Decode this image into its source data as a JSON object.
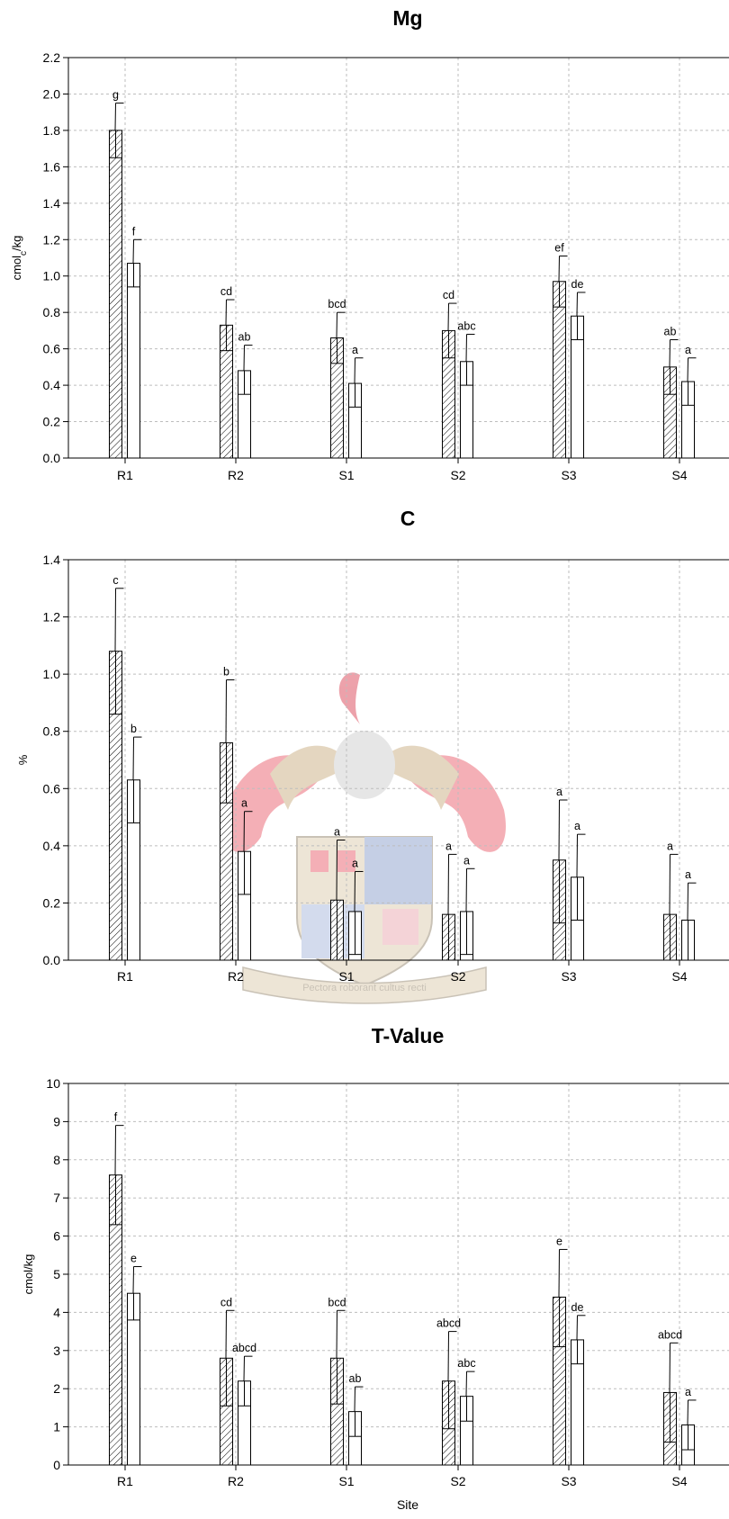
{
  "chart_data": [
    {
      "type": "bar",
      "title": "Mg",
      "ylabel": "cmol",
      "ylabel_sub": "c",
      "ylabel_suffix": "/kg",
      "xlabel": "",
      "categories": [
        "R1",
        "R2",
        "S1",
        "S2",
        "S3",
        "S4"
      ],
      "ylim": [
        0,
        2.2
      ],
      "yticks": [
        "0.0",
        "0.2",
        "0.4",
        "0.6",
        "0.8",
        "1.0",
        "1.2",
        "1.4",
        "1.6",
        "1.8",
        "2.0",
        "2.2"
      ],
      "grid": true,
      "series": [
        {
          "values": [
            1.8,
            0.73,
            0.66,
            0.7,
            0.97,
            0.5
          ],
          "err_upper": [
            1.95,
            0.87,
            0.8,
            0.85,
            1.11,
            0.65
          ],
          "err_lower": [
            1.65,
            0.59,
            0.52,
            0.55,
            0.83,
            0.35
          ],
          "labels": [
            "g",
            "cd",
            "bcd",
            "cd",
            "ef",
            "ab"
          ],
          "pattern": "hatched"
        },
        {
          "values": [
            1.07,
            0.48,
            0.41,
            0.53,
            0.78,
            0.42
          ],
          "err_upper": [
            1.2,
            0.62,
            0.55,
            0.68,
            0.91,
            0.55
          ],
          "err_lower": [
            0.94,
            0.35,
            0.28,
            0.4,
            0.65,
            0.29
          ],
          "labels": [
            "f",
            "ab",
            "a",
            "abc",
            "de",
            "a"
          ],
          "pattern": "open"
        }
      ]
    },
    {
      "type": "bar",
      "title": "C",
      "ylabel": "%",
      "xlabel": "",
      "categories": [
        "R1",
        "R2",
        "S1",
        "S2",
        "S3",
        "S4"
      ],
      "ylim": [
        0,
        1.4
      ],
      "yticks": [
        "0.0",
        "0.2",
        "0.4",
        "0.6",
        "0.8",
        "1.0",
        "1.2",
        "1.4"
      ],
      "grid": true,
      "series": [
        {
          "values": [
            1.08,
            0.76,
            0.21,
            0.16,
            0.35,
            0.16
          ],
          "err_upper": [
            1.3,
            0.98,
            0.42,
            0.37,
            0.56,
            0.37
          ],
          "err_lower": [
            0.86,
            0.55,
            0.0,
            0.0,
            0.13,
            0.0
          ],
          "labels": [
            "c",
            "b",
            "a",
            "a",
            "a",
            "a"
          ],
          "pattern": "hatched"
        },
        {
          "values": [
            0.63,
            0.38,
            0.17,
            0.17,
            0.29,
            0.14
          ],
          "err_upper": [
            0.78,
            0.52,
            0.31,
            0.32,
            0.44,
            0.27
          ],
          "err_lower": [
            0.48,
            0.23,
            0.02,
            0.02,
            0.14,
            0.0
          ],
          "labels": [
            "b",
            "a",
            "a",
            "a",
            "a",
            "a"
          ],
          "pattern": "open"
        }
      ]
    },
    {
      "type": "bar",
      "title": "T-Value",
      "ylabel": "cmol/kg",
      "xlabel": "Site",
      "categories": [
        "R1",
        "R2",
        "S1",
        "S2",
        "S3",
        "S4"
      ],
      "ylim": [
        0,
        10
      ],
      "yticks": [
        "0",
        "1",
        "2",
        "3",
        "4",
        "5",
        "6",
        "7",
        "8",
        "9",
        "10"
      ],
      "grid": true,
      "series": [
        {
          "values": [
            7.6,
            2.8,
            2.8,
            2.2,
            4.4,
            1.9
          ],
          "err_upper": [
            8.9,
            4.05,
            4.05,
            3.5,
            5.65,
            3.2
          ],
          "err_lower": [
            6.3,
            1.55,
            1.6,
            0.95,
            3.1,
            0.6
          ],
          "labels": [
            "f",
            "cd",
            "bcd",
            "abcd",
            "e",
            "abcd"
          ],
          "pattern": "hatched"
        },
        {
          "values": [
            4.5,
            2.2,
            1.4,
            1.8,
            3.28,
            1.05
          ],
          "err_upper": [
            5.2,
            2.85,
            2.05,
            2.45,
            3.92,
            1.7
          ],
          "err_lower": [
            3.8,
            1.55,
            0.75,
            1.15,
            2.65,
            0.4
          ],
          "labels": [
            "e",
            "abcd",
            "ab",
            "abc",
            "de",
            "a"
          ],
          "pattern": "open"
        }
      ]
    }
  ],
  "watermark": {
    "motto": "Pectora roborant cultus recti"
  }
}
